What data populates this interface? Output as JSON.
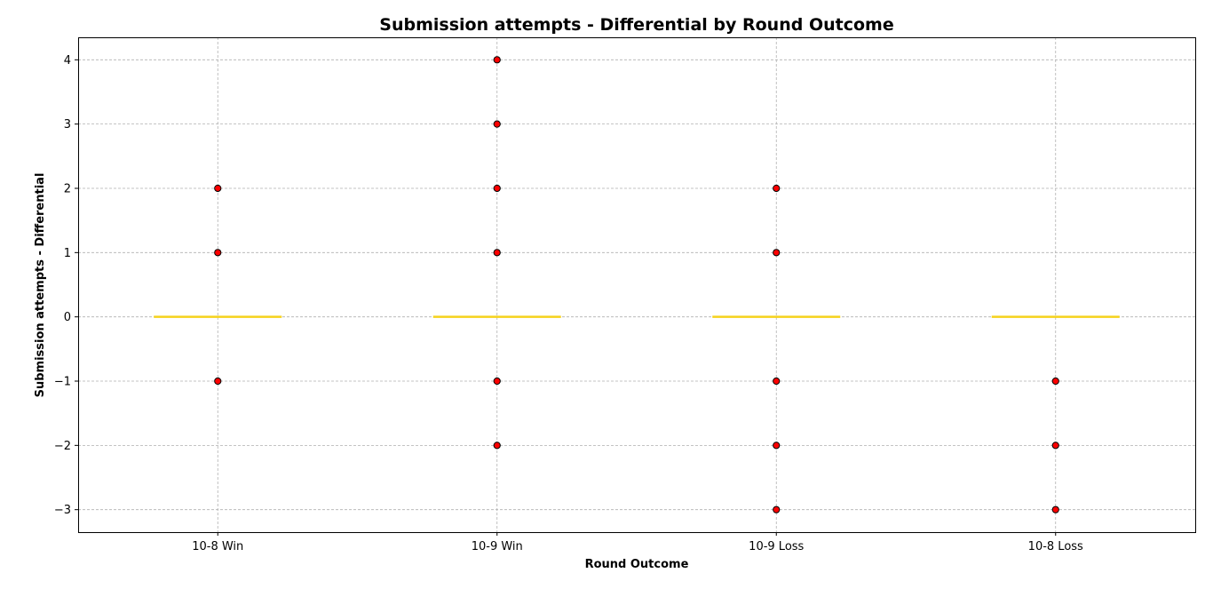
{
  "chart_data": {
    "type": "box",
    "title": "Submission attempts - Differential by Round Outcome",
    "xlabel": "Round Outcome",
    "ylabel": "Submission attempts - Differential",
    "categories": [
      "10-8 Win",
      "10-9 Win",
      "10-9 Loss",
      "10-8 Loss"
    ],
    "ylim": [
      -3.35,
      4.35
    ],
    "yticks": [
      -3,
      -2,
      -1,
      0,
      1,
      2,
      3,
      4
    ],
    "ytick_labels": [
      "−3",
      "−2",
      "−1",
      "0",
      "1",
      "2",
      "3",
      "4"
    ],
    "grid": true,
    "boxes": [
      {
        "category": "10-8 Win",
        "q1": 0,
        "median": 0,
        "q3": 0,
        "whisker_low": 0,
        "whisker_high": 0,
        "outliers": [
          2,
          1,
          -1
        ]
      },
      {
        "category": "10-9 Win",
        "q1": 0,
        "median": 0,
        "q3": 0,
        "whisker_low": 0,
        "whisker_high": 0,
        "outliers": [
          4,
          3,
          2,
          1,
          -1,
          -2
        ]
      },
      {
        "category": "10-9 Loss",
        "q1": 0,
        "median": 0,
        "q3": 0,
        "whisker_low": 0,
        "whisker_high": 0,
        "outliers": [
          2,
          1,
          -1,
          -2,
          -3
        ]
      },
      {
        "category": "10-8 Loss",
        "q1": 0,
        "median": 0,
        "q3": 0,
        "whisker_low": 0,
        "whisker_high": 0,
        "outliers": [
          -1,
          -2,
          -3
        ]
      }
    ],
    "colors": {
      "median": "#f5d21c",
      "outlier_fill": "#ff0000",
      "outlier_edge": "#000000",
      "grid": "#b0b0b0"
    }
  }
}
